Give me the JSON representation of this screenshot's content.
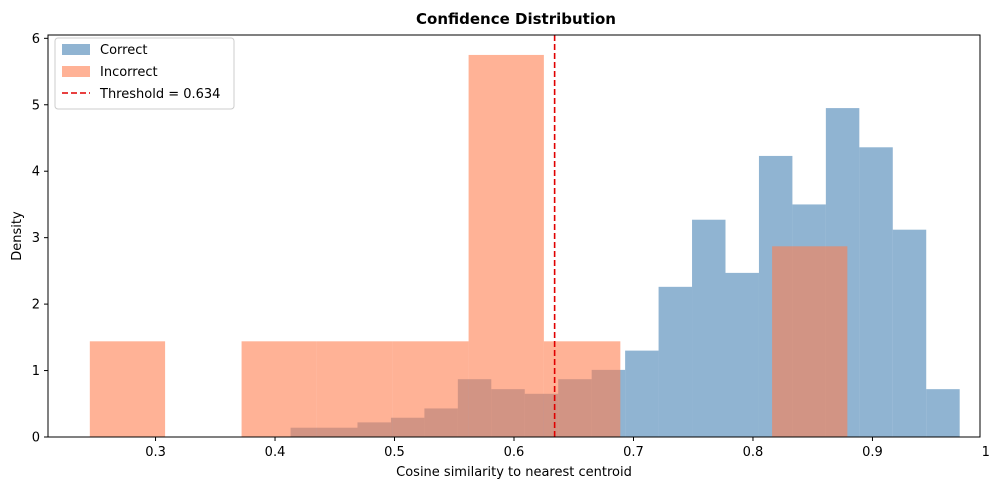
{
  "chart_data": {
    "type": "bar",
    "title": "Confidence Distribution",
    "xlabel": "Cosine similarity to nearest centroid",
    "ylabel": "Density",
    "xlim": [
      0.21,
      0.99
    ],
    "ylim": [
      0,
      6.05
    ],
    "xticks": [
      0.3,
      0.4,
      0.5,
      0.6,
      0.7,
      0.8,
      0.9,
      1.0
    ],
    "xtick_labels": [
      "0.3",
      "0.4",
      "0.5",
      "0.6",
      "0.7",
      "0.8",
      "0.9",
      "1.0"
    ],
    "yticks": [
      0,
      1,
      2,
      3,
      4,
      5,
      6
    ],
    "ytick_labels": [
      "0",
      "1",
      "2",
      "3",
      "4",
      "5",
      "6"
    ],
    "grid": false,
    "legend_position": "top-left",
    "series": [
      {
        "name": "Correct",
        "color": "#4682b4",
        "opacity": 0.6,
        "bins": [
          {
            "x0": 0.413,
            "x1": 0.441,
            "value": 0.14
          },
          {
            "x0": 0.441,
            "x1": 0.469,
            "value": 0.14
          },
          {
            "x0": 0.469,
            "x1": 0.497,
            "value": 0.22
          },
          {
            "x0": 0.497,
            "x1": 0.525,
            "value": 0.29
          },
          {
            "x0": 0.525,
            "x1": 0.553,
            "value": 0.43
          },
          {
            "x0": 0.553,
            "x1": 0.581,
            "value": 0.87
          },
          {
            "x0": 0.581,
            "x1": 0.609,
            "value": 0.72
          },
          {
            "x0": 0.609,
            "x1": 0.637,
            "value": 0.65
          },
          {
            "x0": 0.637,
            "x1": 0.665,
            "value": 0.87
          },
          {
            "x0": 0.665,
            "x1": 0.693,
            "value": 1.01
          },
          {
            "x0": 0.693,
            "x1": 0.721,
            "value": 1.3
          },
          {
            "x0": 0.721,
            "x1": 0.749,
            "value": 2.26
          },
          {
            "x0": 0.749,
            "x1": 0.777,
            "value": 3.27
          },
          {
            "x0": 0.777,
            "x1": 0.805,
            "value": 2.47
          },
          {
            "x0": 0.805,
            "x1": 0.833,
            "value": 4.23
          },
          {
            "x0": 0.833,
            "x1": 0.861,
            "value": 3.5
          },
          {
            "x0": 0.861,
            "x1": 0.889,
            "value": 4.95
          },
          {
            "x0": 0.889,
            "x1": 0.917,
            "value": 4.36
          },
          {
            "x0": 0.917,
            "x1": 0.945,
            "value": 3.12
          },
          {
            "x0": 0.945,
            "x1": 0.973,
            "value": 0.72
          }
        ]
      },
      {
        "name": "Incorrect",
        "color": "#ff7f50",
        "opacity": 0.6,
        "bins": [
          {
            "x0": 0.245,
            "x1": 0.308,
            "value": 1.44
          },
          {
            "x0": 0.308,
            "x1": 0.372,
            "value": 0.0
          },
          {
            "x0": 0.372,
            "x1": 0.435,
            "value": 1.44
          },
          {
            "x0": 0.435,
            "x1": 0.498,
            "value": 1.44
          },
          {
            "x0": 0.498,
            "x1": 0.562,
            "value": 1.44
          },
          {
            "x0": 0.562,
            "x1": 0.625,
            "value": 5.75
          },
          {
            "x0": 0.625,
            "x1": 0.689,
            "value": 1.44
          },
          {
            "x0": 0.689,
            "x1": 0.752,
            "value": 0.0
          },
          {
            "x0": 0.752,
            "x1": 0.816,
            "value": 0.0
          },
          {
            "x0": 0.816,
            "x1": 0.879,
            "value": 2.87
          }
        ]
      }
    ],
    "threshold": {
      "name": "Threshold = 0.634",
      "value": 0.634,
      "color": "#e00000",
      "style": "dashed"
    }
  }
}
